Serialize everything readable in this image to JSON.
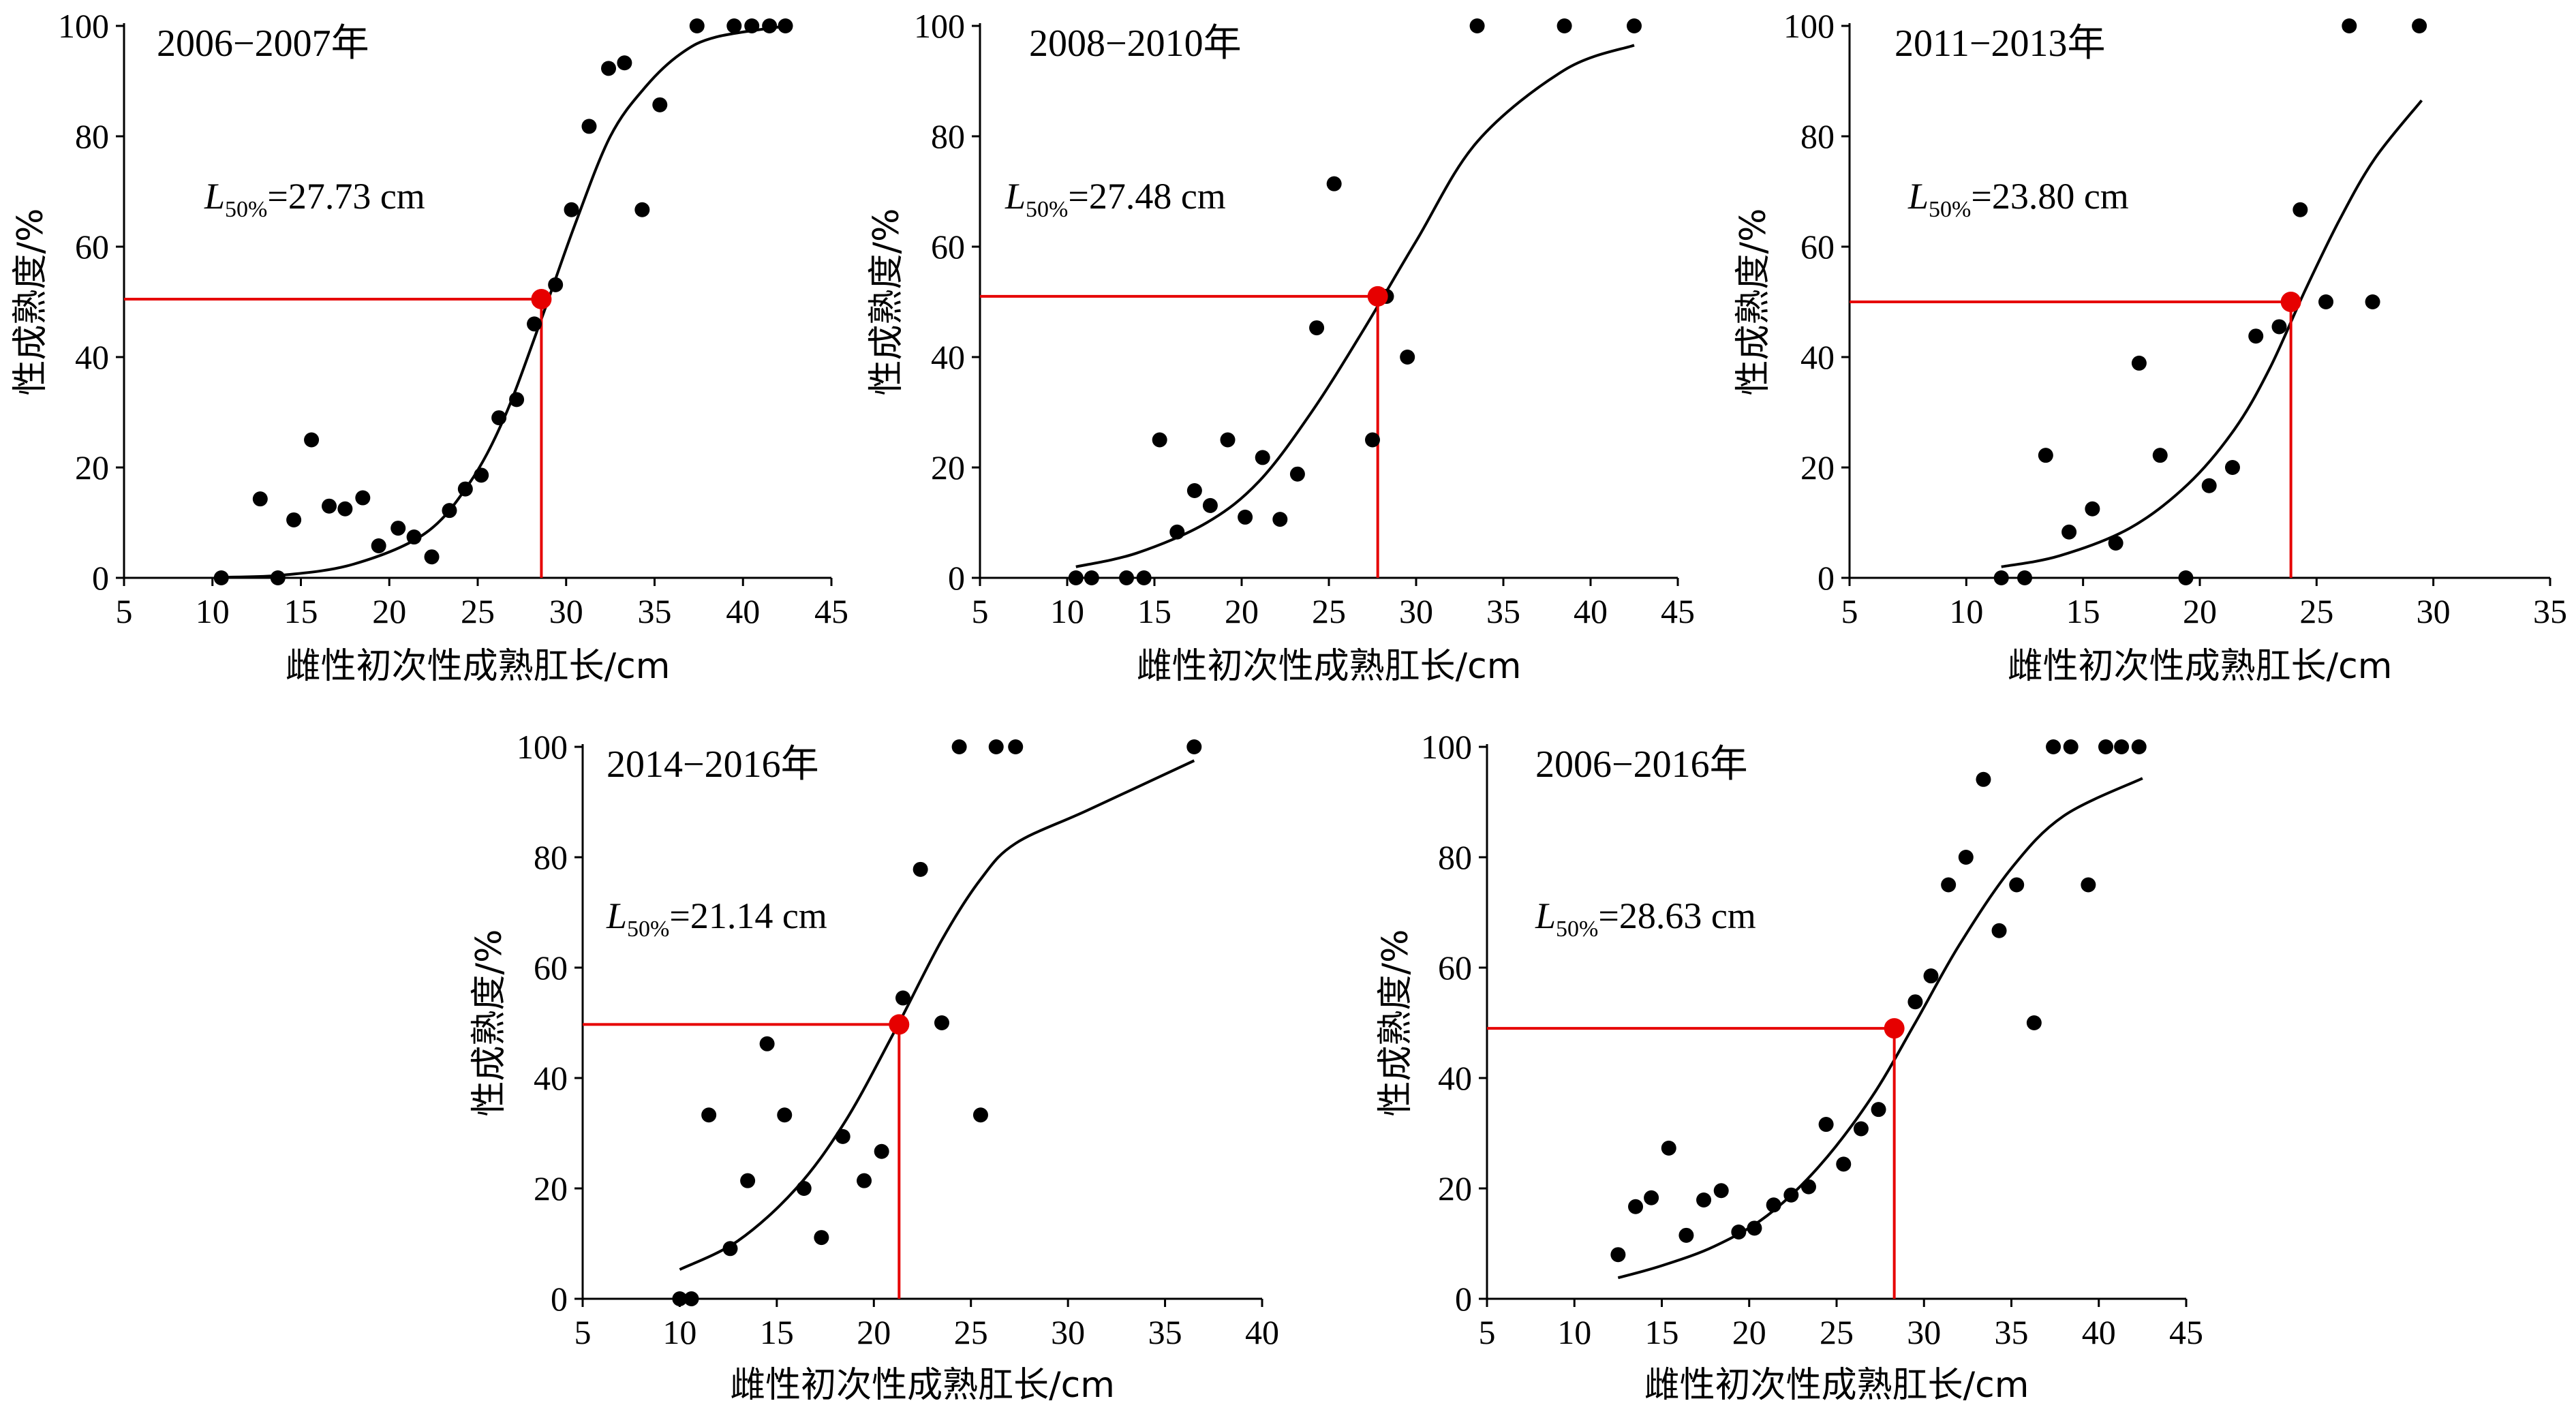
{
  "chart_data": [
    {
      "type": "scatter",
      "title": "2006−2007年",
      "xlabel": "雌性初次性成熟肛长/cm",
      "ylabel": "性成熟度/%",
      "xlim": [
        5,
        45
      ],
      "ylim": [
        0,
        100
      ],
      "xticks": [
        5,
        10,
        15,
        20,
        25,
        30,
        35,
        40,
        45
      ],
      "yticks": [
        0,
        20,
        40,
        60,
        80,
        100
      ],
      "annotation": {
        "symbol": "L",
        "subscript": "50%",
        "text": "=27.73 cm"
      },
      "l50": {
        "x": 28.6,
        "y": 50.5
      },
      "points": [
        [
          10.5,
          0
        ],
        [
          12.7,
          14.3
        ],
        [
          13.7,
          0
        ],
        [
          14.6,
          10.5
        ],
        [
          15.6,
          25
        ],
        [
          16.6,
          13
        ],
        [
          17.5,
          12.5
        ],
        [
          18.5,
          14.5
        ],
        [
          19.4,
          5.8
        ],
        [
          20.5,
          9
        ],
        [
          21.4,
          7.4
        ],
        [
          22.4,
          3.8
        ],
        [
          23.4,
          12.2
        ],
        [
          24.3,
          16.1
        ],
        [
          25.2,
          18.6
        ],
        [
          26.2,
          29
        ],
        [
          27.2,
          32.3
        ],
        [
          28.2,
          46
        ],
        [
          29.4,
          53.1
        ],
        [
          30.3,
          66.7
        ],
        [
          31.3,
          81.8
        ],
        [
          32.4,
          92.3
        ],
        [
          33.3,
          93.3
        ],
        [
          34.3,
          66.7
        ],
        [
          35.3,
          85.7
        ],
        [
          37.4,
          100
        ],
        [
          39.5,
          100
        ],
        [
          40.5,
          100
        ],
        [
          41.5,
          100
        ],
        [
          42.4,
          100
        ]
      ],
      "fit": [
        [
          10.5,
          0.1
        ],
        [
          14,
          0.5
        ],
        [
          18,
          2.5
        ],
        [
          22,
          8
        ],
        [
          24.5,
          17
        ],
        [
          26.5,
          29
        ],
        [
          28.5,
          46
        ],
        [
          30.5,
          64
        ],
        [
          32.5,
          80
        ],
        [
          34.5,
          89
        ],
        [
          36.5,
          95
        ],
        [
          38.5,
          98
        ],
        [
          42.5,
          100
        ]
      ]
    },
    {
      "type": "scatter",
      "title": "2008−2010年",
      "xlabel": "雌性初次性成熟肛长/cm",
      "ylabel": "性成熟度/%",
      "xlim": [
        5,
        45
      ],
      "ylim": [
        0,
        100
      ],
      "xticks": [
        5,
        10,
        15,
        20,
        25,
        30,
        35,
        40,
        45
      ],
      "yticks": [
        0,
        20,
        40,
        60,
        80,
        100
      ],
      "annotation": {
        "symbol": "L",
        "subscript": "50%",
        "text": "=27.48 cm"
      },
      "l50": {
        "x": 27.8,
        "y": 51
      },
      "points": [
        [
          10.5,
          0
        ],
        [
          11.4,
          0
        ],
        [
          13.4,
          0
        ],
        [
          14.4,
          0
        ],
        [
          15.3,
          25
        ],
        [
          16.3,
          8.3
        ],
        [
          17.3,
          15.8
        ],
        [
          18.2,
          13.1
        ],
        [
          19.2,
          25
        ],
        [
          20.2,
          11
        ],
        [
          21.2,
          21.8
        ],
        [
          22.2,
          10.6
        ],
        [
          23.2,
          18.8
        ],
        [
          24.3,
          45.3
        ],
        [
          25.3,
          71.4
        ],
        [
          27.5,
          25
        ],
        [
          28.3,
          51
        ],
        [
          29.5,
          40
        ],
        [
          33.5,
          100
        ],
        [
          38.5,
          100
        ],
        [
          42.5,
          100
        ]
      ],
      "fit": [
        [
          10.5,
          2
        ],
        [
          14,
          4.5
        ],
        [
          18,
          10
        ],
        [
          21,
          17.5
        ],
        [
          24,
          30
        ],
        [
          27,
          45
        ],
        [
          30,
          61
        ],
        [
          33.5,
          79
        ],
        [
          38.5,
          92
        ],
        [
          42.5,
          96.5
        ]
      ]
    },
    {
      "type": "scatter",
      "title": "2011−2013年",
      "xlabel": "雌性初次性成熟肛长/cm",
      "ylabel": "性成熟度/%",
      "xlim": [
        5,
        35
      ],
      "ylim": [
        0,
        100
      ],
      "xticks": [
        5,
        10,
        15,
        20,
        25,
        30,
        35
      ],
      "yticks": [
        0,
        20,
        40,
        60,
        80,
        100
      ],
      "annotation": {
        "symbol": "L",
        "subscript": "50%",
        "text": "=23.80 cm"
      },
      "l50": {
        "x": 23.9,
        "y": 50
      },
      "points": [
        [
          11.5,
          0
        ],
        [
          12.5,
          0
        ],
        [
          13.4,
          22.2
        ],
        [
          14.4,
          8.3
        ],
        [
          15.4,
          12.5
        ],
        [
          16.4,
          6.3
        ],
        [
          17.4,
          38.9
        ],
        [
          18.3,
          22.2
        ],
        [
          19.4,
          0
        ],
        [
          20.4,
          16.7
        ],
        [
          21.4,
          20
        ],
        [
          22.4,
          43.8
        ],
        [
          23.4,
          45.5
        ],
        [
          23.9,
          50
        ],
        [
          24.3,
          66.7
        ],
        [
          25.4,
          50
        ],
        [
          26.4,
          100
        ],
        [
          27.4,
          50
        ],
        [
          29.4,
          100
        ]
      ],
      "fit": [
        [
          11.5,
          2
        ],
        [
          14,
          4
        ],
        [
          17,
          9
        ],
        [
          19.5,
          17
        ],
        [
          21.5,
          27
        ],
        [
          23,
          38
        ],
        [
          24.5,
          52
        ],
        [
          26,
          65
        ],
        [
          27.5,
          76
        ],
        [
          29.5,
          86.5
        ]
      ]
    },
    {
      "type": "scatter",
      "title": "2014−2016年",
      "xlabel": "雌性初次性成熟肛长/cm",
      "ylabel": "性成熟度/%",
      "xlim": [
        5,
        40
      ],
      "ylim": [
        0,
        100
      ],
      "xticks": [
        5,
        10,
        15,
        20,
        25,
        30,
        35,
        40
      ],
      "yticks": [
        0,
        20,
        40,
        60,
        80,
        100
      ],
      "annotation": {
        "symbol": "L",
        "subscript": "50%",
        "text": "=21.14 cm"
      },
      "l50": {
        "x": 21.3,
        "y": 49.7
      },
      "points": [
        [
          10,
          0
        ],
        [
          10.6,
          0
        ],
        [
          11.5,
          33.3
        ],
        [
          12.6,
          9.1
        ],
        [
          13.5,
          21.4
        ],
        [
          14.5,
          46.2
        ],
        [
          15.4,
          33.3
        ],
        [
          16.4,
          20
        ],
        [
          17.3,
          11.1
        ],
        [
          18.4,
          29.4
        ],
        [
          19.5,
          21.4
        ],
        [
          20.4,
          26.7
        ],
        [
          21.5,
          54.5
        ],
        [
          22.4,
          77.8
        ],
        [
          23.5,
          50
        ],
        [
          24.4,
          100
        ],
        [
          25.5,
          33.3
        ],
        [
          26.3,
          100
        ],
        [
          27.3,
          100
        ],
        [
          36.5,
          100
        ]
      ],
      "fit": [
        [
          10,
          5.3
        ],
        [
          13,
          10.5
        ],
        [
          16,
          20
        ],
        [
          18.5,
          32
        ],
        [
          21,
          48
        ],
        [
          23.5,
          65
        ],
        [
          25.5,
          76
        ],
        [
          27.3,
          82.5
        ],
        [
          31,
          88.5
        ],
        [
          36.5,
          97.5
        ]
      ]
    },
    {
      "type": "scatter",
      "title": "2006−2016年",
      "xlabel": "雌性初次性成熟肛长/cm",
      "ylabel": "性成熟度/%",
      "xlim": [
        5,
        45
      ],
      "ylim": [
        0,
        100
      ],
      "xticks": [
        5,
        10,
        15,
        20,
        25,
        30,
        35,
        40,
        45
      ],
      "yticks": [
        0,
        20,
        40,
        60,
        80,
        100
      ],
      "annotation": {
        "symbol": "L",
        "subscript": "50%",
        "text": "=28.63 cm"
      },
      "l50": {
        "x": 28.3,
        "y": 49
      },
      "points": [
        [
          12.5,
          8
        ],
        [
          13.5,
          16.7
        ],
        [
          14.4,
          18.3
        ],
        [
          15.4,
          27.3
        ],
        [
          16.4,
          11.5
        ],
        [
          17.4,
          17.9
        ],
        [
          18.4,
          19.6
        ],
        [
          19.4,
          12.1
        ],
        [
          20.3,
          12.8
        ],
        [
          21.4,
          17
        ],
        [
          22.4,
          18.8
        ],
        [
          23.4,
          20.3
        ],
        [
          24.4,
          31.6
        ],
        [
          25.4,
          24.4
        ],
        [
          26.4,
          30.8
        ],
        [
          27.4,
          34.3
        ],
        [
          28.3,
          49
        ],
        [
          29.5,
          53.8
        ],
        [
          30.4,
          58.5
        ],
        [
          31.4,
          75
        ],
        [
          32.4,
          80
        ],
        [
          33.4,
          94.1
        ],
        [
          34.3,
          66.7
        ],
        [
          35.3,
          75
        ],
        [
          36.3,
          50
        ],
        [
          37.4,
          100
        ],
        [
          38.4,
          100
        ],
        [
          39.4,
          75
        ],
        [
          40.4,
          100
        ],
        [
          41.3,
          100
        ],
        [
          42.3,
          100
        ]
      ],
      "fit": [
        [
          12.5,
          3.8
        ],
        [
          15,
          6
        ],
        [
          18,
          9.5
        ],
        [
          21,
          15
        ],
        [
          24,
          24
        ],
        [
          27,
          36.5
        ],
        [
          29.5,
          50
        ],
        [
          32,
          64
        ],
        [
          35,
          78
        ],
        [
          38,
          87.5
        ],
        [
          42.5,
          94.3
        ]
      ]
    }
  ]
}
